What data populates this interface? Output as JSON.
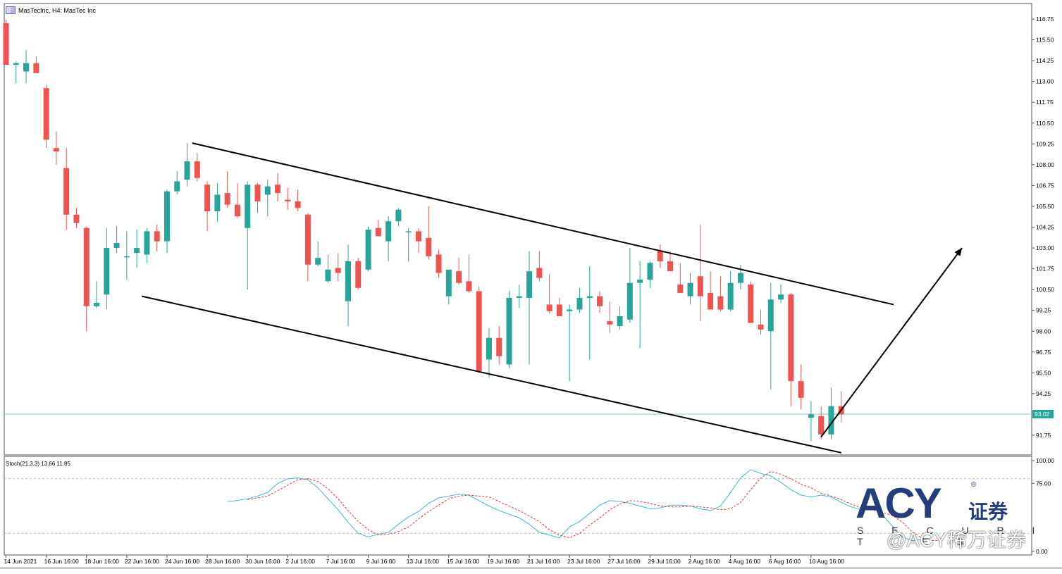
{
  "header": {
    "title": "MasTecInc, H4:  MasTec Inc"
  },
  "indicator": {
    "label": "Stoch(21,3,3) 13.66 11.85"
  },
  "current_price": "93.02",
  "logo": {
    "brand": "ACY",
    "registered": "®",
    "cn": "证券",
    "sub": "S E C U R I T I E S"
  },
  "watermark": "@ACY稀万证券",
  "colors": {
    "bull": "#26a69a",
    "bear": "#ef5350",
    "grid": "#b8b8b8",
    "price_line": "#7fcac3",
    "stoch_main": "#3fb8d9",
    "stoch_signal": "#e53935"
  },
  "chart_data": [
    {
      "type": "candlestick",
      "title": "MasTecInc, H4:  MasTec Inc",
      "y_ticks": [
        "116.75",
        "115.50",
        "114.25",
        "113.00",
        "111.75",
        "110.50",
        "109.25",
        "108.00",
        "106.75",
        "105.50",
        "104.25",
        "103.00",
        "101.75",
        "100.50",
        "99.25",
        "98.00",
        "96.75",
        "95.50",
        "94.25",
        "93.02",
        "91.75"
      ],
      "ylim": [
        90.95,
        117.0
      ],
      "x_ticks": [
        "14 Jun 2021",
        "16 Jun 16:00",
        "18 Jun 16:00",
        "22 Jun 16:00",
        "24 Jun 16:00",
        "28 Jun 16:00",
        "30 Jun 16:00",
        "2 Jul 16:00",
        "7 Jul 16:00",
        "9 Jul 16:00",
        "13 Jul 16:00",
        "15 Jul 16:00",
        "19 Jul 16:00",
        "21 Jul 16:00",
        "23 Jul 16:00",
        "27 Jul 16:00",
        "29 Jul 16:00",
        "2 Aug 16:00",
        "4 Aug 16:00",
        "6 Aug 16:00",
        "10 Aug 16:00"
      ],
      "x_tick_bars": [
        0,
        4,
        8,
        12,
        16,
        20,
        24,
        28,
        32,
        36,
        40,
        44,
        48,
        52,
        56,
        60,
        64,
        68,
        72,
        76,
        80
      ],
      "current_price": 93.02,
      "candles": [
        [
          116.5,
          116.7,
          114.0,
          114.0
        ],
        [
          114.0,
          114.2,
          112.9,
          114.1
        ],
        [
          113.6,
          114.9,
          112.9,
          114.1
        ],
        [
          114.1,
          114.5,
          113.6,
          113.5
        ],
        [
          112.6,
          112.8,
          109.0,
          109.5
        ],
        [
          109.0,
          110.0,
          108.0,
          108.8
        ],
        [
          107.8,
          109.0,
          104.1,
          105.0
        ],
        [
          105.0,
          105.4,
          104.2,
          104.5
        ],
        [
          104.2,
          104.3,
          98.0,
          99.5
        ],
        [
          99.5,
          101.0,
          99.4,
          99.7
        ],
        [
          100.2,
          104.2,
          99.3,
          103.0
        ],
        [
          103.0,
          104.3,
          102.7,
          103.3
        ],
        [
          102.5,
          104.0,
          101.1,
          102.5
        ],
        [
          102.7,
          104.1,
          101.8,
          103.0
        ],
        [
          102.6,
          104.2,
          102.1,
          104.0
        ],
        [
          104.0,
          104.4,
          102.8,
          103.4
        ],
        [
          103.4,
          106.5,
          102.7,
          106.4
        ],
        [
          106.4,
          107.6,
          106.2,
          107.0
        ],
        [
          107.1,
          109.3,
          106.7,
          108.2
        ],
        [
          108.2,
          108.7,
          107.0,
          107.2
        ],
        [
          106.8,
          107.0,
          104.0,
          105.2
        ],
        [
          105.2,
          106.9,
          104.6,
          106.2
        ],
        [
          106.3,
          107.6,
          105.4,
          105.6
        ],
        [
          105.6,
          106.9,
          104.8,
          104.9
        ],
        [
          104.2,
          107.0,
          100.5,
          106.8
        ],
        [
          106.8,
          106.9,
          105.1,
          105.8
        ],
        [
          106.2,
          107.1,
          104.9,
          106.7
        ],
        [
          106.8,
          107.5,
          105.8,
          106.3
        ],
        [
          105.9,
          106.6,
          105.3,
          105.8
        ],
        [
          105.8,
          106.5,
          105.2,
          105.4
        ],
        [
          105.0,
          105.1,
          101.0,
          102.0
        ],
        [
          102.0,
          103.4,
          101.9,
          102.4
        ],
        [
          101.0,
          102.6,
          100.9,
          101.7
        ],
        [
          101.8,
          102.7,
          101.0,
          101.5
        ],
        [
          99.8,
          103.2,
          98.3,
          102.2
        ],
        [
          102.2,
          102.4,
          100.5,
          100.6
        ],
        [
          101.7,
          104.3,
          101.6,
          104.1
        ],
        [
          104.2,
          104.7,
          103.9,
          103.7
        ],
        [
          103.4,
          104.9,
          102.2,
          104.6
        ],
        [
          104.6,
          105.4,
          104.3,
          105.3
        ],
        [
          104.0,
          104.2,
          102.2,
          104.0
        ],
        [
          104.0,
          104.2,
          102.7,
          103.4
        ],
        [
          103.6,
          105.5,
          102.3,
          102.5
        ],
        [
          102.6,
          102.9,
          101.2,
          101.5
        ],
        [
          100.1,
          101.7,
          99.6,
          101.7
        ],
        [
          101.6,
          102.4,
          100.8,
          100.9
        ],
        [
          101.0,
          102.6,
          100.3,
          100.4
        ],
        [
          100.4,
          100.7,
          95.5,
          95.6
        ],
        [
          96.3,
          98.2,
          95.2,
          97.6
        ],
        [
          97.6,
          98.3,
          96.0,
          96.5
        ],
        [
          96.0,
          100.4,
          95.8,
          100.0
        ],
        [
          100.0,
          100.8,
          99.4,
          100.1
        ],
        [
          100.0,
          102.8,
          96.0,
          101.6
        ],
        [
          101.8,
          102.8,
          101.0,
          101.2
        ],
        [
          99.6,
          101.4,
          99.1,
          99.2
        ],
        [
          99.6,
          100.0,
          98.9,
          98.9
        ],
        [
          99.2,
          99.6,
          95.0,
          99.3
        ],
        [
          99.3,
          100.6,
          99.1,
          100.0
        ],
        [
          100.0,
          101.9,
          96.3,
          100.1
        ],
        [
          100.1,
          100.4,
          99.1,
          99.5
        ],
        [
          98.6,
          99.8,
          97.9,
          98.4
        ],
        [
          98.3,
          99.5,
          98.1,
          98.9
        ],
        [
          98.7,
          103.0,
          98.5,
          100.9
        ],
        [
          100.9,
          102.2,
          97.0,
          101.1
        ],
        [
          101.1,
          102.2,
          100.6,
          102.1
        ],
        [
          102.8,
          103.2,
          101.8,
          102.2
        ],
        [
          102.2,
          102.8,
          101.6,
          101.6
        ],
        [
          100.8,
          102.1,
          100.3,
          100.3
        ],
        [
          100.1,
          101.5,
          99.6,
          100.9
        ],
        [
          101.3,
          104.4,
          98.6,
          100.1
        ],
        [
          100.3,
          101.6,
          99.3,
          99.3
        ],
        [
          100.1,
          101.3,
          99.2,
          99.3
        ],
        [
          99.3,
          101.6,
          99.2,
          100.9
        ],
        [
          100.9,
          102.0,
          100.5,
          101.5
        ],
        [
          100.8,
          101.0,
          98.7,
          98.5
        ],
        [
          98.4,
          99.3,
          97.8,
          98.1
        ],
        [
          98.0,
          100.9,
          94.5,
          99.9
        ],
        [
          99.9,
          100.8,
          99.7,
          100.2
        ],
        [
          100.2,
          100.3,
          93.5,
          95.0
        ],
        [
          95.0,
          96.0,
          93.3,
          94.0
        ],
        [
          92.8,
          93.8,
          91.4,
          93.0
        ],
        [
          92.9,
          93.5,
          91.5,
          91.8
        ],
        [
          91.8,
          94.6,
          91.5,
          93.5
        ],
        [
          93.5,
          94.4,
          92.5,
          93.0
        ]
      ],
      "trendlines": [
        {
          "from": [
            18.5,
            109.3
          ],
          "to": [
            88.2,
            99.6
          ]
        },
        {
          "from": [
            13.5,
            100.1
          ],
          "to": [
            83.0,
            90.7
          ]
        }
      ],
      "arrow": {
        "from": [
          81.0,
          91.65
        ],
        "to": [
          95.0,
          103.0
        ]
      }
    },
    {
      "type": "line",
      "title": "Stoch(21,3,3) 13.66 11.85",
      "ylim": [
        0,
        100
      ],
      "y_ticks": [
        "100.00",
        "75.00",
        "0.00"
      ],
      "levels": [
        80,
        20
      ],
      "series": [
        {
          "name": "main",
          "start_bar": 22,
          "values": [
            55,
            56,
            58,
            61,
            65,
            75,
            80,
            81,
            79,
            70,
            58,
            46,
            32,
            20,
            16,
            19,
            21,
            30,
            38,
            44,
            53,
            59,
            61,
            63,
            62,
            56,
            50,
            45,
            41,
            37,
            30,
            21,
            18,
            15,
            27,
            33,
            42,
            51,
            56,
            55,
            53,
            50,
            47,
            48,
            51,
            51,
            50,
            47,
            45,
            50,
            65,
            81,
            90,
            86,
            83,
            76,
            68,
            62,
            60,
            62,
            60,
            54,
            49,
            46,
            50,
            41,
            29,
            16,
            12,
            13,
            15
          ]
        },
        {
          "name": "signal",
          "start_bar": 24,
          "values": [
            57,
            59,
            61,
            67,
            73,
            79,
            80,
            77,
            69,
            58,
            45,
            33,
            24,
            18,
            19,
            22,
            27,
            36,
            44,
            51,
            58,
            61,
            62,
            61,
            60,
            55,
            50,
            45,
            39,
            33,
            24,
            18,
            15,
            20,
            29,
            37,
            46,
            52,
            56,
            55,
            53,
            50,
            49,
            49,
            50,
            49,
            48,
            46,
            47,
            54,
            68,
            81,
            88,
            85,
            80,
            74,
            70,
            64,
            61,
            57,
            52,
            48,
            46,
            43,
            40,
            33,
            22,
            15,
            12,
            12
          ]
        }
      ]
    }
  ]
}
